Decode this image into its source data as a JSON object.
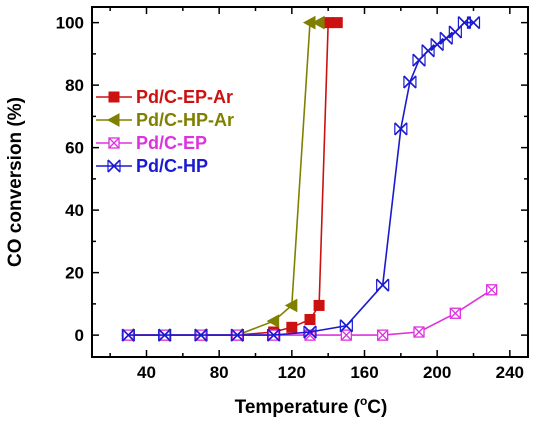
{
  "chart_data": {
    "type": "line",
    "title": "",
    "xlabel": "Temperature (°C)",
    "xlabel_main": "Temperature (",
    "xlabel_sup": "o",
    "xlabel_unit_tail": "C)",
    "ylabel": "CO conversion (%)",
    "xlim": [
      10,
      250
    ],
    "ylim": [
      -7,
      105
    ],
    "xticks": [
      40,
      80,
      120,
      160,
      200,
      240
    ],
    "yticks": [
      0,
      20,
      40,
      60,
      80,
      100
    ],
    "grid": false,
    "legend_position": "upper-left",
    "series": [
      {
        "name": "Pd/C-EP-Ar",
        "color": "#cc1111",
        "marker": "square",
        "points": [
          [
            30,
            0
          ],
          [
            50,
            0
          ],
          [
            70,
            0
          ],
          [
            90,
            0
          ],
          [
            110,
            1
          ],
          [
            120,
            2.5
          ],
          [
            130,
            5
          ],
          [
            135,
            9.5
          ],
          [
            140,
            100
          ],
          [
            145,
            100
          ]
        ]
      },
      {
        "name": "Pd/C-HP-Ar",
        "color": "#808000",
        "marker": "triangle-left",
        "points": [
          [
            30,
            0
          ],
          [
            50,
            0
          ],
          [
            70,
            0
          ],
          [
            90,
            0
          ],
          [
            110,
            4.5
          ],
          [
            120,
            9.5
          ],
          [
            130,
            100
          ],
          [
            135,
            100
          ]
        ]
      },
      {
        "name": "Pd/C-EP",
        "color": "#dd33dd",
        "marker": "square-x",
        "points": [
          [
            30,
            0
          ],
          [
            50,
            0
          ],
          [
            70,
            0
          ],
          [
            90,
            0
          ],
          [
            110,
            0
          ],
          [
            130,
            0
          ],
          [
            150,
            0
          ],
          [
            170,
            0
          ],
          [
            190,
            1
          ],
          [
            210,
            7
          ],
          [
            230,
            14.5
          ]
        ]
      },
      {
        "name": "Pd/C-HP",
        "color": "#1a1ad0",
        "marker": "x-cross",
        "points": [
          [
            30,
            0
          ],
          [
            50,
            0
          ],
          [
            70,
            0
          ],
          [
            90,
            0
          ],
          [
            110,
            0
          ],
          [
            130,
            1
          ],
          [
            150,
            3
          ],
          [
            170,
            16
          ],
          [
            180,
            66
          ],
          [
            185,
            81
          ],
          [
            190,
            88
          ],
          [
            195,
            91
          ],
          [
            200,
            93
          ],
          [
            205,
            95
          ],
          [
            210,
            97
          ],
          [
            215,
            100
          ],
          [
            220,
            100
          ]
        ]
      }
    ]
  }
}
